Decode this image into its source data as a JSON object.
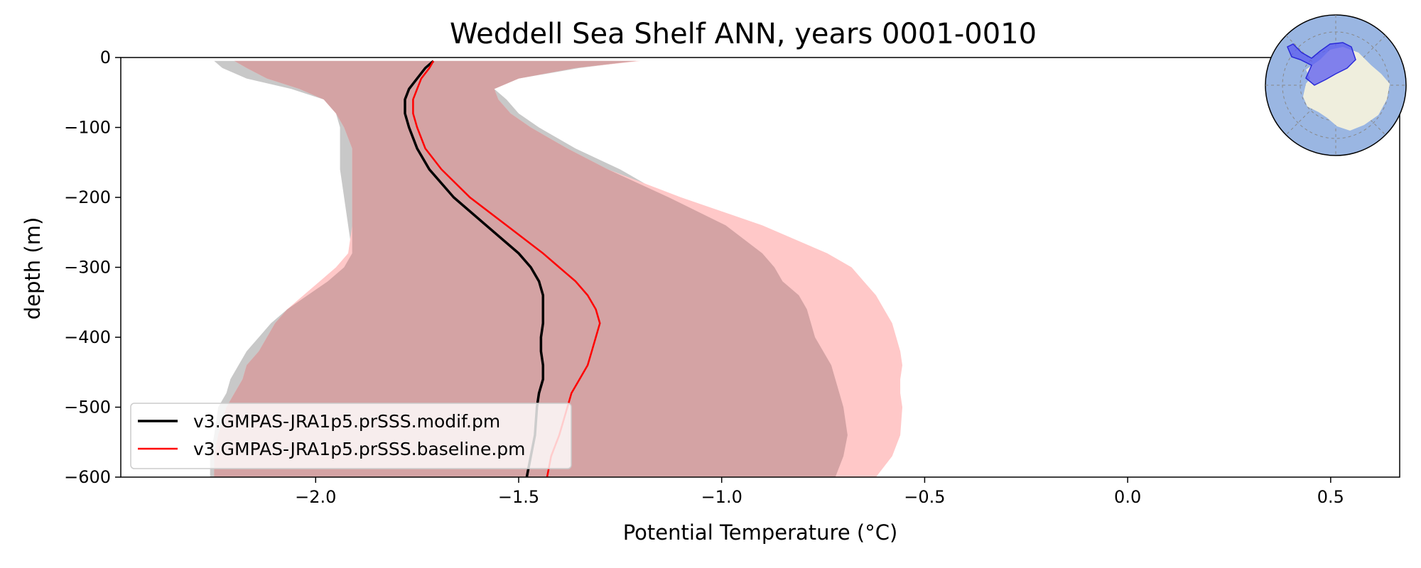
{
  "chart_data": {
    "type": "line",
    "title": "Weddell Sea Shelf ANN, years 0001-0010",
    "xlabel": "Potential Temperature (°C)",
    "ylabel": "depth (m)",
    "xlim": [
      -2.48,
      0.67
    ],
    "ylim": [
      -600,
      0
    ],
    "xticks": [
      -2.0,
      -1.5,
      -1.0,
      -0.5,
      0.0,
      0.5
    ],
    "xtick_labels": [
      "−2.0",
      "−1.5",
      "−1.0",
      "−0.5",
      "0.0",
      "0.5"
    ],
    "yticks": [
      0,
      -100,
      -200,
      -300,
      -400,
      -500,
      -600
    ],
    "ytick_labels": [
      "0",
      "−100",
      "−200",
      "−300",
      "−400",
      "−500",
      "−600"
    ],
    "legend_location": "lower-left",
    "inset_map": "Antarctic polar map with Weddell Sea shelf region highlighted in blue",
    "colors": {
      "modif_line": "#000000",
      "baseline_line": "#ff0000",
      "modif_band": "#c8c8c8",
      "baseline_band": "#ffc8c8",
      "overlap_band": "#d4a3a4",
      "region_fill": "#5b5bf0",
      "ocean": "#9ab6e2",
      "land": "#efeedd"
    },
    "series": [
      {
        "name": "v3.GMPAS-JRA1p5.prSSS.modif.pm",
        "depth": [
          -5,
          -15,
          -30,
          -45,
          -60,
          -80,
          -100,
          -130,
          -160,
          -200,
          -240,
          -280,
          -300,
          -320,
          -340,
          -360,
          -380,
          -400,
          -420,
          -440,
          -460,
          -480,
          -500,
          -540,
          -570,
          -600
        ],
        "values": [
          -1.71,
          -1.73,
          -1.75,
          -1.77,
          -1.78,
          -1.78,
          -1.77,
          -1.75,
          -1.72,
          -1.66,
          -1.58,
          -1.5,
          -1.47,
          -1.45,
          -1.44,
          -1.44,
          -1.44,
          -1.445,
          -1.445,
          -1.44,
          -1.44,
          -1.45,
          -1.455,
          -1.46,
          -1.47,
          -1.48
        ],
        "band_lower": [
          -2.25,
          -2.23,
          -2.17,
          -2.06,
          -1.98,
          -1.95,
          -1.94,
          -1.94,
          -1.94,
          -1.93,
          -1.92,
          -1.91,
          -1.93,
          -1.97,
          -2.02,
          -2.07,
          -2.11,
          -2.14,
          -2.17,
          -2.19,
          -2.21,
          -2.22,
          -2.24,
          -2.25,
          -2.26,
          -2.26
        ],
        "band_upper": [
          -1.21,
          -1.35,
          -1.5,
          -1.56,
          -1.53,
          -1.5,
          -1.45,
          -1.36,
          -1.25,
          -1.13,
          -0.99,
          -0.9,
          -0.87,
          -0.85,
          -0.81,
          -0.79,
          -0.78,
          -0.77,
          -0.75,
          -0.73,
          -0.72,
          -0.71,
          -0.7,
          -0.69,
          -0.7,
          -0.72
        ]
      },
      {
        "name": "v3.GMPAS-JRA1p5.prSSS.baseline.pm",
        "depth": [
          -5,
          -15,
          -30,
          -45,
          -60,
          -80,
          -100,
          -130,
          -160,
          -200,
          -240,
          -280,
          -300,
          -320,
          -340,
          -360,
          -380,
          -400,
          -420,
          -440,
          -460,
          -480,
          -500,
          -540,
          -570,
          -600
        ],
        "values": [
          -1.71,
          -1.72,
          -1.74,
          -1.75,
          -1.76,
          -1.76,
          -1.75,
          -1.73,
          -1.69,
          -1.62,
          -1.53,
          -1.44,
          -1.4,
          -1.36,
          -1.33,
          -1.31,
          -1.3,
          -1.31,
          -1.32,
          -1.33,
          -1.35,
          -1.37,
          -1.38,
          -1.4,
          -1.42,
          -1.43
        ],
        "band_lower": [
          -2.2,
          -2.17,
          -2.12,
          -2.04,
          -1.98,
          -1.95,
          -1.93,
          -1.91,
          -1.91,
          -1.91,
          -1.91,
          -1.92,
          -1.95,
          -1.99,
          -2.03,
          -2.07,
          -2.1,
          -2.12,
          -2.14,
          -2.17,
          -2.18,
          -2.2,
          -2.22,
          -2.24,
          -2.25,
          -2.25
        ],
        "band_upper": [
          -1.2,
          -1.36,
          -1.5,
          -1.56,
          -1.55,
          -1.52,
          -1.47,
          -1.38,
          -1.28,
          -1.1,
          -0.9,
          -0.74,
          -0.68,
          -0.65,
          -0.62,
          -0.6,
          -0.58,
          -0.57,
          -0.56,
          -0.555,
          -0.56,
          -0.56,
          -0.555,
          -0.56,
          -0.58,
          -0.62
        ]
      }
    ]
  }
}
